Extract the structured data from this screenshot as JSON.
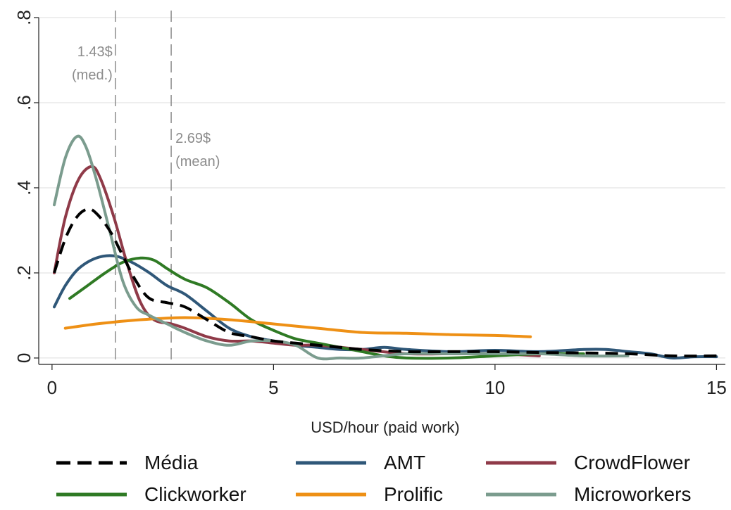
{
  "chart_data": {
    "type": "line",
    "xlabel": "USD/hour (paid work)",
    "ylabel": "",
    "xlim": [
      -0.3,
      15.2
    ],
    "ylim": [
      -0.015,
      0.8
    ],
    "x_ticks": [
      0,
      5,
      10,
      15
    ],
    "x_tick_labels": [
      "0",
      "5",
      "10",
      "15"
    ],
    "y_ticks": [
      0,
      0.2,
      0.4,
      0.6,
      0.8
    ],
    "y_tick_labels": [
      "0",
      ".2",
      ".4",
      ".6",
      ".8"
    ],
    "grid": true,
    "legend_position": "bottom",
    "reference_lines": [
      {
        "x": 1.43,
        "style": "dashed",
        "label_lines": [
          "1.43$",
          "(med.)"
        ]
      },
      {
        "x": 2.69,
        "style": "dashed",
        "label_lines": [
          "2.69$",
          "(mean)"
        ]
      }
    ],
    "series": [
      {
        "name": "Média",
        "color": "#000000",
        "style": "dashed",
        "width": 4,
        "points": [
          [
            0.05,
            0.2
          ],
          [
            0.3,
            0.28
          ],
          [
            0.55,
            0.33
          ],
          [
            0.8,
            0.35
          ],
          [
            1.0,
            0.34
          ],
          [
            1.3,
            0.3
          ],
          [
            1.6,
            0.24
          ],
          [
            1.9,
            0.18
          ],
          [
            2.2,
            0.14
          ],
          [
            2.6,
            0.13
          ],
          [
            3.0,
            0.12
          ],
          [
            3.5,
            0.09
          ],
          [
            4.0,
            0.06
          ],
          [
            4.5,
            0.05
          ],
          [
            5.0,
            0.04
          ],
          [
            5.5,
            0.035
          ],
          [
            6.0,
            0.03
          ],
          [
            6.5,
            0.025
          ],
          [
            7.0,
            0.02
          ],
          [
            8.0,
            0.015
          ],
          [
            9.0,
            0.015
          ],
          [
            10.0,
            0.015
          ],
          [
            11.0,
            0.013
          ],
          [
            12.0,
            0.012
          ],
          [
            13.0,
            0.01
          ],
          [
            14.0,
            0.005
          ],
          [
            15.0,
            0.005
          ]
        ]
      },
      {
        "name": "AMT",
        "color": "#2f5778",
        "style": "solid",
        "width": 4,
        "points": [
          [
            0.05,
            0.12
          ],
          [
            0.3,
            0.17
          ],
          [
            0.6,
            0.21
          ],
          [
            1.0,
            0.235
          ],
          [
            1.4,
            0.24
          ],
          [
            1.8,
            0.225
          ],
          [
            2.2,
            0.2
          ],
          [
            2.6,
            0.17
          ],
          [
            3.0,
            0.15
          ],
          [
            3.5,
            0.11
          ],
          [
            4.0,
            0.07
          ],
          [
            4.5,
            0.05
          ],
          [
            5.0,
            0.04
          ],
          [
            5.5,
            0.03
          ],
          [
            6.0,
            0.025
          ],
          [
            6.5,
            0.02
          ],
          [
            7.0,
            0.02
          ],
          [
            7.5,
            0.025
          ],
          [
            8.0,
            0.02
          ],
          [
            9.0,
            0.015
          ],
          [
            10.0,
            0.018
          ],
          [
            11.0,
            0.015
          ],
          [
            12.0,
            0.02
          ],
          [
            12.5,
            0.02
          ],
          [
            13.0,
            0.015
          ],
          [
            13.5,
            0.01
          ],
          [
            14.0,
            0.0
          ],
          [
            14.5,
            0.003
          ],
          [
            15.0,
            0.003
          ]
        ]
      },
      {
        "name": "CrowdFlower",
        "color": "#8f3a48",
        "style": "solid",
        "width": 4,
        "points": [
          [
            0.05,
            0.2
          ],
          [
            0.3,
            0.33
          ],
          [
            0.6,
            0.42
          ],
          [
            0.9,
            0.45
          ],
          [
            1.1,
            0.42
          ],
          [
            1.4,
            0.33
          ],
          [
            1.7,
            0.22
          ],
          [
            2.0,
            0.13
          ],
          [
            2.3,
            0.09
          ],
          [
            2.7,
            0.08
          ],
          [
            3.0,
            0.07
          ],
          [
            3.5,
            0.05
          ],
          [
            4.0,
            0.04
          ],
          [
            4.5,
            0.04
          ],
          [
            5.0,
            0.035
          ],
          [
            5.5,
            0.03
          ],
          [
            6.0,
            0.03
          ],
          [
            7.0,
            0.02
          ],
          [
            8.0,
            0.01
          ],
          [
            9.0,
            0.01
          ],
          [
            10.0,
            0.01
          ],
          [
            11.0,
            0.005
          ]
        ]
      },
      {
        "name": "Clickworker",
        "color": "#2f7a24",
        "style": "solid",
        "width": 4,
        "points": [
          [
            0.4,
            0.14
          ],
          [
            0.8,
            0.17
          ],
          [
            1.2,
            0.2
          ],
          [
            1.6,
            0.225
          ],
          [
            2.0,
            0.235
          ],
          [
            2.3,
            0.23
          ],
          [
            2.6,
            0.21
          ],
          [
            3.0,
            0.185
          ],
          [
            3.5,
            0.165
          ],
          [
            4.0,
            0.13
          ],
          [
            4.5,
            0.09
          ],
          [
            5.0,
            0.065
          ],
          [
            5.5,
            0.045
          ],
          [
            6.0,
            0.035
          ],
          [
            6.5,
            0.025
          ],
          [
            7.0,
            0.015
          ],
          [
            7.5,
            0.005
          ],
          [
            8.0,
            0.0
          ],
          [
            9.0,
            0.0
          ],
          [
            10.0,
            0.005
          ],
          [
            11.0,
            0.01
          ],
          [
            12.0,
            0.01
          ]
        ]
      },
      {
        "name": "Prolific",
        "color": "#ee9015",
        "style": "solid",
        "width": 4,
        "points": [
          [
            0.3,
            0.07
          ],
          [
            1.0,
            0.08
          ],
          [
            2.0,
            0.09
          ],
          [
            3.0,
            0.095
          ],
          [
            4.0,
            0.09
          ],
          [
            5.0,
            0.08
          ],
          [
            6.0,
            0.07
          ],
          [
            7.0,
            0.06
          ],
          [
            8.0,
            0.058
          ],
          [
            9.0,
            0.055
          ],
          [
            10.0,
            0.053
          ],
          [
            10.8,
            0.05
          ]
        ]
      },
      {
        "name": "Microworkers",
        "color": "#7b9c8e",
        "style": "solid",
        "width": 4,
        "points": [
          [
            0.05,
            0.36
          ],
          [
            0.3,
            0.47
          ],
          [
            0.55,
            0.52
          ],
          [
            0.75,
            0.5
          ],
          [
            1.0,
            0.42
          ],
          [
            1.3,
            0.3
          ],
          [
            1.6,
            0.18
          ],
          [
            1.9,
            0.12
          ],
          [
            2.2,
            0.1
          ],
          [
            2.6,
            0.08
          ],
          [
            3.0,
            0.06
          ],
          [
            3.5,
            0.04
          ],
          [
            4.0,
            0.03
          ],
          [
            4.5,
            0.04
          ],
          [
            5.0,
            0.04
          ],
          [
            5.5,
            0.03
          ],
          [
            6.0,
            0.0
          ],
          [
            6.5,
            0.0
          ],
          [
            7.0,
            0.0
          ],
          [
            8.0,
            0.01
          ],
          [
            9.0,
            0.01
          ],
          [
            10.0,
            0.01
          ],
          [
            11.0,
            0.01
          ],
          [
            12.0,
            0.005
          ],
          [
            13.0,
            0.005
          ]
        ]
      }
    ],
    "legend": [
      {
        "label": "Média",
        "color": "#000000",
        "style": "dashed"
      },
      {
        "label": "AMT",
        "color": "#2f5778",
        "style": "solid"
      },
      {
        "label": "CrowdFlower",
        "color": "#8f3a48",
        "style": "solid"
      },
      {
        "label": "Clickworker",
        "color": "#2f7a24",
        "style": "solid"
      },
      {
        "label": "Prolific",
        "color": "#ee9015",
        "style": "solid"
      },
      {
        "label": "Microworkers",
        "color": "#7b9c8e",
        "style": "solid"
      }
    ]
  }
}
